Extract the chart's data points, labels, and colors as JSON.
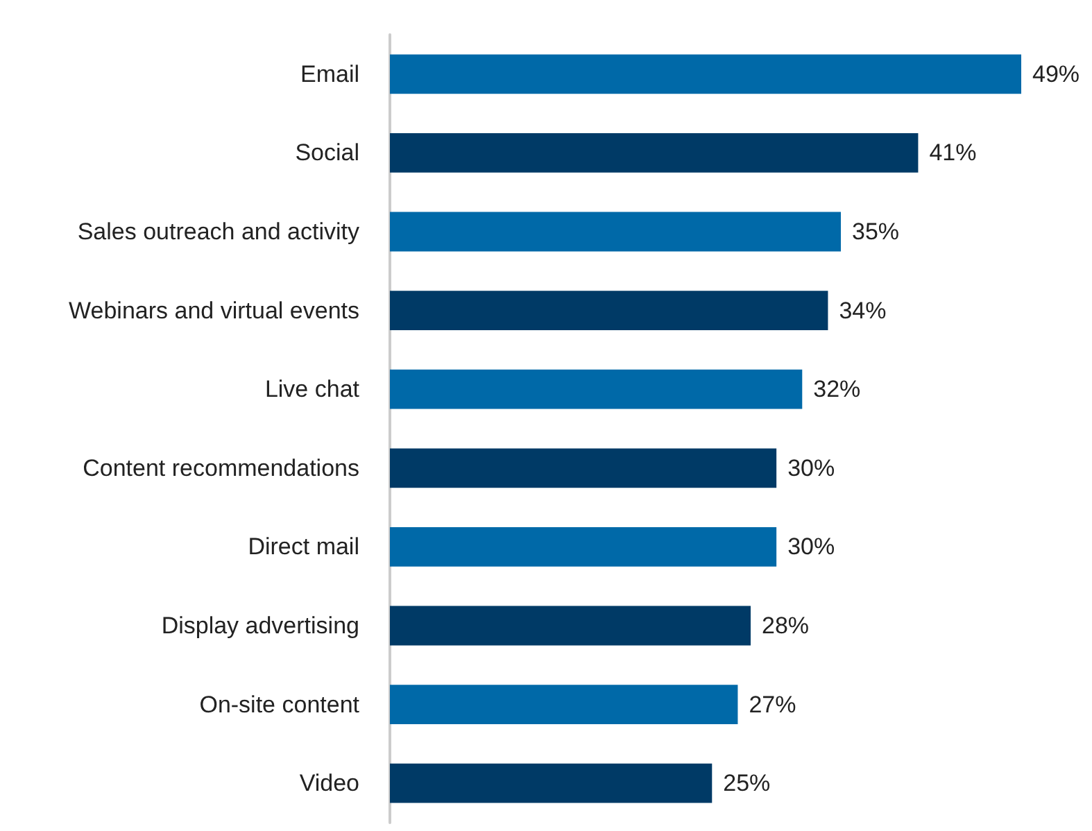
{
  "chart_data": {
    "type": "bar",
    "orientation": "horizontal",
    "categories": [
      "Email",
      "Social",
      "Sales outreach and activity",
      "Webinars and virtual events",
      "Live chat",
      "Content recommendations",
      "Direct mail",
      "Display advertising",
      "On-site content",
      "Video"
    ],
    "values": [
      49,
      41,
      35,
      34,
      32,
      30,
      30,
      28,
      27,
      25
    ],
    "value_labels": [
      "49%",
      "41%",
      "35%",
      "34%",
      "32%",
      "30%",
      "30%",
      "28%",
      "27%",
      "25%"
    ],
    "colors": [
      "#0069a8",
      "#003a66",
      "#0069a8",
      "#003a66",
      "#0069a8",
      "#003a66",
      "#0069a8",
      "#003a66",
      "#0069a8",
      "#003a66"
    ]
  }
}
